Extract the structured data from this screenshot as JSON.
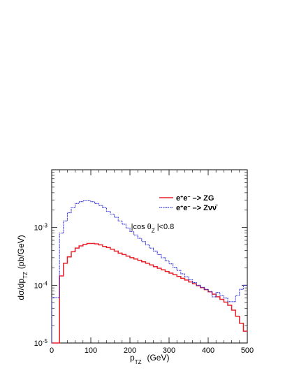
{
  "chart_data": {
    "type": "line",
    "xlabel": "p",
    "xlabel_sub": "TZ",
    "xlabel_unit": "(GeV)",
    "ylabel": "dσ/dp",
    "ylabel_sub": "TZ",
    "ylabel_unit": "(pb/GeV)",
    "xlim": [
      0,
      500
    ],
    "ylim": [
      1e-05,
      0.01
    ],
    "yscale": "log",
    "xticks": [
      0,
      100,
      200,
      300,
      400,
      500
    ],
    "xtick_labels": [
      "0",
      "100",
      "200",
      "300",
      "400",
      "500"
    ],
    "ytick_base": "10",
    "ytick_exponents": [
      "-5",
      "-4",
      "-3"
    ],
    "yticks": [
      1e-05,
      0.0001,
      0.001
    ],
    "annotation": {
      "pre": "|cos θ",
      "sub": "Z",
      "post": " |<0.8",
      "x": 310,
      "y": 0.00048
    },
    "bin_width": 10,
    "series": [
      {
        "name": "e+e- -> ZG",
        "legend": {
          "e": "e",
          "plus": "+",
          "e2": "e",
          "minus": "−",
          "arrow": " –> ",
          "proc": "ZG"
        },
        "color": "#e8202a",
        "style": "solid",
        "x": [
          0,
          10,
          20,
          30,
          40,
          50,
          60,
          70,
          80,
          90,
          100,
          110,
          120,
          130,
          140,
          150,
          160,
          170,
          180,
          190,
          200,
          210,
          220,
          230,
          240,
          250,
          260,
          270,
          280,
          290,
          300,
          310,
          320,
          330,
          340,
          350,
          360,
          370,
          380,
          390,
          400,
          410,
          420,
          430,
          440,
          450,
          460,
          470,
          480,
          490
        ],
        "values": [
          1e-05,
          1e-05,
          0.000145,
          0.00024,
          0.00031,
          0.00038,
          0.00044,
          0.00048,
          0.00051,
          0.00053,
          0.00053,
          0.00052,
          0.0005,
          0.00047,
          0.00045,
          0.00042,
          0.00039,
          0.00036,
          0.00034,
          0.00032,
          0.0003,
          0.000285,
          0.00027,
          0.000255,
          0.00024,
          0.000225,
          0.00021,
          0.000197,
          0.000185,
          0.000173,
          0.000162,
          0.000152,
          0.000142,
          0.000132,
          0.000123,
          0.000114,
          0.000106,
          9.8e-05,
          9.1e-05,
          8.4e-05,
          7.7e-05,
          7e-05,
          6.3e-05,
          5.7e-05,
          5.1e-05,
          4.5e-05,
          3.7e-05,
          2.9e-05,
          2.2e-05,
          1.6e-05
        ]
      },
      {
        "name": "e+e- -> Zνν̄",
        "legend": {
          "e": "e",
          "plus": "+",
          "e2": "e",
          "minus": "−",
          "arrow": " –> ",
          "proc": "Zνν̄"
        },
        "color": "#2b2bd8",
        "style": "dotted",
        "x": [
          0,
          10,
          20,
          30,
          40,
          50,
          60,
          70,
          80,
          90,
          100,
          110,
          120,
          130,
          140,
          150,
          160,
          170,
          180,
          190,
          200,
          210,
          220,
          230,
          240,
          250,
          260,
          270,
          280,
          290,
          300,
          310,
          320,
          330,
          340,
          350,
          360,
          370,
          380,
          390,
          400,
          410,
          420,
          430,
          440,
          450,
          460,
          470,
          480,
          490
        ],
        "values": [
          6.1e-05,
          6.1e-05,
          0.0008,
          0.0013,
          0.0018,
          0.0022,
          0.0026,
          0.0028,
          0.0029,
          0.0029,
          0.0028,
          0.0026,
          0.0024,
          0.0022,
          0.0019,
          0.0017,
          0.0015,
          0.0013,
          0.00114,
          0.00098,
          0.00085,
          0.00074,
          0.00065,
          0.00057,
          0.0005,
          0.00044,
          0.00039,
          0.00034,
          0.0003,
          0.000265,
          0.000235,
          0.000205,
          0.00018,
          0.000158,
          0.00014,
          0.000124,
          0.000111,
          0.0001,
          9.2e-05,
          8.5e-05,
          7.8e-05,
          6.3e-05,
          7.5e-05,
          6.6e-05,
          6e-05,
          5.2e-05,
          5.2e-05,
          6.6e-05,
          8.5e-05,
          0.0001
        ]
      }
    ]
  }
}
